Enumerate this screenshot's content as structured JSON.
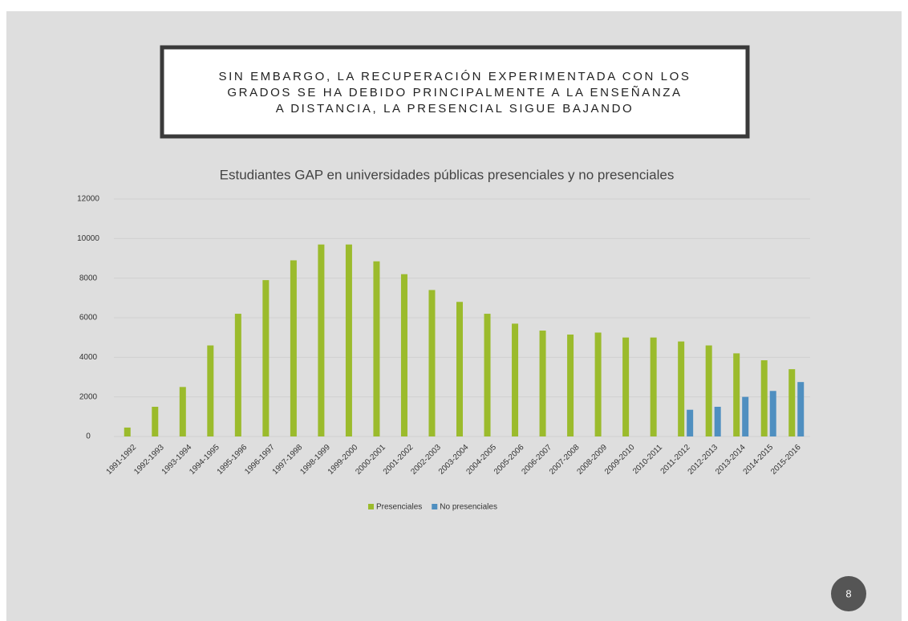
{
  "slide": {
    "heading": [
      "SIN EMBARGO, LA RECUPERACIÓN EXPERIMENTADA CON LOS",
      "GRADOS SE HA DEBIDO PRINCIPALMENTE A LA ENSEÑANZA",
      "A DISTANCIA, LA PRESENCIAL SIGUE BAJANDO"
    ],
    "page_number": "8"
  },
  "chart_data": {
    "type": "bar",
    "title": "Estudiantes GAP en universidades públicas presenciales y no presenciales",
    "categories": [
      "1991-1992",
      "1992-1993",
      "1993-1994",
      "1994-1995",
      "1995-1996",
      "1996-1997",
      "1997-1998",
      "1998-1999",
      "1999-2000",
      "2000-2001",
      "2001-2002",
      "2002-2003",
      "2003-2004",
      "2004-2005",
      "2005-2006",
      "2006-2007",
      "2007-2008",
      "2008-2009",
      "2009-2010",
      "2010-2011",
      "2011-2012",
      "2012-2013",
      "2013-2014",
      "2014-2015",
      "2015-2016"
    ],
    "series": [
      {
        "name": "Presenciales",
        "color": "#9bbb2c",
        "values": [
          450,
          1500,
          2500,
          4600,
          6200,
          7900,
          8900,
          9700,
          9700,
          8850,
          8200,
          7400,
          6800,
          6200,
          5700,
          5350,
          5150,
          5250,
          5000,
          5000,
          4800,
          4600,
          4200,
          3850,
          3400
        ]
      },
      {
        "name": "No presenciales",
        "color": "#4f8fc0",
        "values": [
          null,
          null,
          null,
          null,
          null,
          null,
          null,
          null,
          null,
          null,
          null,
          null,
          null,
          null,
          null,
          null,
          null,
          null,
          null,
          null,
          1350,
          1500,
          2000,
          2300,
          2750
        ]
      }
    ],
    "ylim": [
      0,
      12000
    ],
    "yticks": [
      0,
      2000,
      4000,
      6000,
      8000,
      10000,
      12000
    ],
    "grid": true,
    "legend": "bottom"
  }
}
